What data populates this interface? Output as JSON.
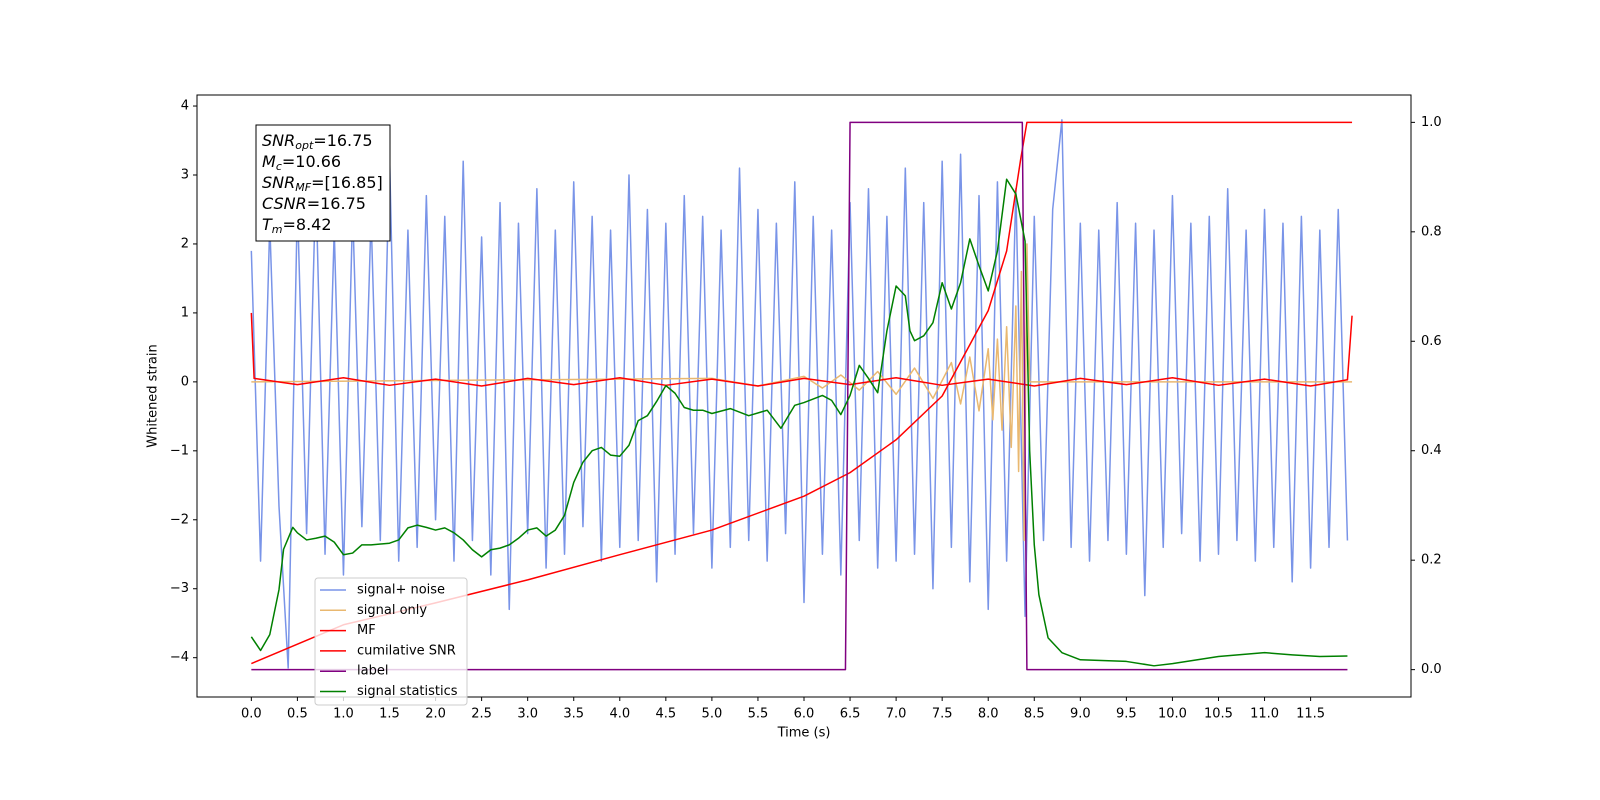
{
  "chart_data": {
    "type": "line",
    "xlabel": "Time (s)",
    "ylabel": "Whitened strain",
    "xlim": [
      -0.59,
      12.59
    ],
    "ylim": [
      -4.57,
      4.16
    ],
    "y2lim": [
      -0.05,
      1.05
    ],
    "xticks": [
      {
        "value": 0,
        "label": "0.0"
      },
      0.5,
      {
        "value": 1,
        "label": "1.0"
      },
      1.5,
      {
        "value": 2,
        "label": "2.0"
      },
      2.5,
      {
        "value": 3,
        "label": "3.0"
      },
      3.5,
      {
        "value": 4,
        "label": "4.0"
      },
      4.5,
      {
        "value": 5,
        "label": "5.0"
      },
      5.5,
      {
        "value": 6,
        "label": "6.0"
      },
      6.5,
      {
        "value": 7,
        "label": "7.0"
      },
      7.5,
      {
        "value": 8,
        "label": "8.0"
      },
      8.5,
      {
        "value": 9,
        "label": "9.0"
      },
      9.5,
      {
        "value": 10,
        "label": "10.0"
      },
      10.5,
      {
        "value": 11,
        "label": "11.0"
      },
      11.5
    ],
    "yticks": [
      {
        "value": -4,
        "label": "−4"
      },
      {
        "value": -3,
        "label": "−3"
      },
      {
        "value": -2,
        "label": "−2"
      },
      {
        "value": -1,
        "label": "−1"
      },
      0,
      1,
      2,
      3,
      4
    ],
    "y2ticks": [
      {
        "value": 0,
        "label": "0.0"
      },
      0.2,
      0.4,
      0.6,
      0.8,
      {
        "value": 1,
        "label": "1.0"
      }
    ],
    "legend": "lower left",
    "annotations": [
      {
        "symbol": "SNR",
        "subscript": "opt",
        "text": "=16.75"
      },
      {
        "symbol": "M",
        "subscript": "c",
        "text": "=10.66"
      },
      {
        "symbol": "SNR",
        "subscript": "MF",
        "text": "=[16.85]"
      },
      {
        "symbol": "CSNR",
        "text": "=16.75"
      },
      {
        "symbol": "T",
        "subscript": "m",
        "text": "=8.42"
      }
    ],
    "series": [
      {
        "name": "signal+ noise",
        "color": "#7994e8",
        "x": [
          0,
          0.1,
          0.2,
          0.3,
          0.4,
          0.5,
          0.6,
          0.7,
          0.8,
          0.9,
          1,
          1.1,
          1.2,
          1.3,
          1.4,
          1.5,
          1.6,
          1.7,
          1.8,
          1.9,
          2,
          2.1,
          2.2,
          2.3,
          2.4,
          2.5,
          2.6,
          2.7,
          2.8,
          2.9,
          3,
          3.1,
          3.2,
          3.3,
          3.4,
          3.5,
          3.6,
          3.7,
          3.8,
          3.9,
          4,
          4.1,
          4.2,
          4.3,
          4.4,
          4.5,
          4.6,
          4.7,
          4.8,
          4.9,
          5,
          5.1,
          5.2,
          5.3,
          5.4,
          5.5,
          5.6,
          5.7,
          5.8,
          5.9,
          6,
          6.1,
          6.2,
          6.3,
          6.4,
          6.5,
          6.6,
          6.7,
          6.8,
          6.9,
          7,
          7.1,
          7.2,
          7.3,
          7.4,
          7.5,
          7.6,
          7.7,
          7.8,
          7.9,
          8,
          8.1,
          8.2,
          8.3,
          8.4,
          8.5,
          8.6,
          8.7,
          8.8,
          8.9,
          9,
          9.1,
          9.2,
          9.3,
          9.4,
          9.5,
          9.6,
          9.7,
          9.8,
          9.9,
          10,
          10.1,
          10.2,
          10.3,
          10.4,
          10.5,
          10.6,
          10.7,
          10.8,
          10.9,
          11,
          11.1,
          11.2,
          11.3,
          11.4,
          11.5,
          11.6,
          11.7,
          11.8,
          11.9
        ],
        "values": [
          1.9,
          -2.6,
          2.3,
          -1.8,
          -4.15,
          2.6,
          -2.2,
          2.9,
          -2.5,
          2.2,
          -2.8,
          2.5,
          -2.1,
          2.4,
          -2.3,
          3.3,
          -2.6,
          2.2,
          -2.4,
          2.7,
          -2.0,
          2.4,
          -2.6,
          3.2,
          -2.3,
          2.1,
          -2.8,
          2.6,
          -3.3,
          2.3,
          -2.2,
          2.8,
          -2.7,
          2.2,
          -2.5,
          2.9,
          -2.1,
          2.4,
          -2.6,
          2.2,
          -2.4,
          3.0,
          -2.3,
          2.5,
          -2.9,
          2.3,
          -2.5,
          2.7,
          -2.2,
          2.4,
          -2.7,
          2.2,
          -2.4,
          3.1,
          -2.3,
          2.5,
          -2.6,
          2.3,
          -2.2,
          2.9,
          -3.2,
          2.4,
          -2.5,
          2.2,
          -2.8,
          2.6,
          -2.3,
          2.8,
          -2.7,
          2.4,
          -2.6,
          3.1,
          -2.5,
          2.6,
          -3.0,
          3.2,
          -2.4,
          3.3,
          -2.9,
          2.7,
          -3.3,
          2.9,
          -2.6,
          2.8,
          -3.4,
          2.4,
          -2.3,
          2.5,
          3.8,
          -2.4,
          2.3,
          -2.6,
          2.2,
          -2.3,
          2.6,
          -2.5,
          2.3,
          -3.1,
          2.2,
          -2.4,
          2.7,
          -2.2,
          2.3,
          -2.6,
          2.4,
          -2.5,
          2.8,
          -2.3,
          2.2,
          -2.6,
          2.5,
          -2.4,
          2.3,
          -2.9,
          2.4,
          -2.7,
          2.2,
          -2.4,
          2.5,
          -2.3
        ]
      },
      {
        "name": "signal only",
        "color": "#e9b870",
        "x": [
          0,
          5,
          5.5,
          6,
          6.2,
          6.4,
          6.6,
          6.8,
          7,
          7.2,
          7.4,
          7.6,
          7.7,
          7.8,
          7.9,
          8,
          8.05,
          8.1,
          8.15,
          8.2,
          8.25,
          8.3,
          8.33,
          8.36,
          8.39,
          8.42,
          8.45,
          11.95
        ],
        "values": [
          0,
          0.05,
          -0.06,
          0.08,
          -0.09,
          0.1,
          -0.12,
          0.15,
          -0.18,
          0.2,
          -0.24,
          0.28,
          -0.32,
          0.36,
          -0.42,
          0.48,
          -0.55,
          0.62,
          -0.7,
          0.8,
          -0.95,
          1.1,
          -1.3,
          1.6,
          -2.3,
          2.0,
          0,
          0
        ]
      },
      {
        "name": "MF",
        "color": "#ff0000",
        "x": [
          0,
          0.03,
          0.5,
          1,
          1.5,
          2,
          2.5,
          3,
          3.5,
          4,
          4.5,
          5,
          5.5,
          6,
          6.5,
          7,
          7.5,
          8,
          8.5,
          9,
          9.5,
          10,
          10.5,
          11,
          11.5,
          11.9,
          11.95
        ],
        "values": [
          1.0,
          0.05,
          -0.04,
          0.06,
          -0.05,
          0.04,
          -0.06,
          0.05,
          -0.04,
          0.06,
          -0.05,
          0.04,
          -0.06,
          0.05,
          -0.04,
          0.06,
          -0.05,
          0.04,
          -0.06,
          0.05,
          -0.04,
          0.06,
          -0.05,
          0.04,
          -0.06,
          0.03,
          0.96
        ]
      },
      {
        "name": "cumilative SNR",
        "color": "#ff0000",
        "axis": "y2",
        "x": [
          0,
          1,
          2,
          3,
          4,
          5,
          6,
          6.5,
          7,
          7.5,
          8,
          8.2,
          8.35,
          8.42,
          11.95
        ],
        "values": [
          0.011,
          0.082,
          0.122,
          0.164,
          0.21,
          0.255,
          0.317,
          0.36,
          0.42,
          0.5,
          0.656,
          0.765,
          0.93,
          1.0,
          1.0
        ]
      },
      {
        "name": "label",
        "color": "#800080",
        "axis": "y2",
        "x": [
          0,
          6.45,
          6.5,
          8.37,
          8.42,
          11.9
        ],
        "values": [
          0,
          0,
          1,
          1,
          0,
          0
        ]
      },
      {
        "name": "signal statistics",
        "color": "#008000",
        "axis": "y2",
        "x": [
          0,
          0.1,
          0.2,
          0.3,
          0.35,
          0.4,
          0.45,
          0.5,
          0.6,
          0.7,
          0.8,
          0.9,
          1,
          1.1,
          1.2,
          1.3,
          1.5,
          1.6,
          1.7,
          1.8,
          1.9,
          2,
          2.1,
          2.2,
          2.3,
          2.4,
          2.5,
          2.6,
          2.7,
          2.8,
          2.9,
          3,
          3.1,
          3.2,
          3.3,
          3.4,
          3.5,
          3.6,
          3.7,
          3.8,
          3.9,
          4,
          4.1,
          4.2,
          4.3,
          4.4,
          4.5,
          4.6,
          4.7,
          4.8,
          4.9,
          5,
          5.2,
          5.4,
          5.6,
          5.75,
          5.9,
          6,
          6.2,
          6.3,
          6.4,
          6.5,
          6.6,
          6.7,
          6.8,
          6.9,
          7,
          7.1,
          7.15,
          7.2,
          7.3,
          7.4,
          7.5,
          7.6,
          7.7,
          7.8,
          7.9,
          8,
          8.1,
          8.2,
          8.3,
          8.4,
          8.45,
          8.5,
          8.55,
          8.65,
          8.8,
          9,
          9.5,
          9.8,
          10,
          10.5,
          11,
          11.3,
          11.6,
          11.9
        ],
        "values": [
          0.06,
          0.035,
          0.064,
          0.146,
          0.22,
          0.24,
          0.26,
          0.25,
          0.237,
          0.24,
          0.244,
          0.233,
          0.21,
          0.213,
          0.228,
          0.228,
          0.231,
          0.237,
          0.259,
          0.264,
          0.26,
          0.255,
          0.259,
          0.25,
          0.237,
          0.219,
          0.206,
          0.219,
          0.222,
          0.228,
          0.24,
          0.255,
          0.259,
          0.244,
          0.255,
          0.282,
          0.342,
          0.379,
          0.4,
          0.406,
          0.392,
          0.39,
          0.41,
          0.455,
          0.464,
          0.49,
          0.519,
          0.505,
          0.479,
          0.474,
          0.474,
          0.468,
          0.477,
          0.464,
          0.474,
          0.441,
          0.483,
          0.488,
          0.501,
          0.492,
          0.466,
          0.501,
          0.556,
          0.532,
          0.506,
          0.619,
          0.701,
          0.683,
          0.619,
          0.601,
          0.61,
          0.634,
          0.707,
          0.659,
          0.707,
          0.787,
          0.738,
          0.692,
          0.765,
          0.896,
          0.869,
          0.783,
          0.4,
          0.228,
          0.137,
          0.058,
          0.031,
          0.018,
          0.015,
          0.007,
          0.011,
          0.024,
          0.031,
          0.027,
          0.024,
          0.025
        ]
      }
    ]
  }
}
